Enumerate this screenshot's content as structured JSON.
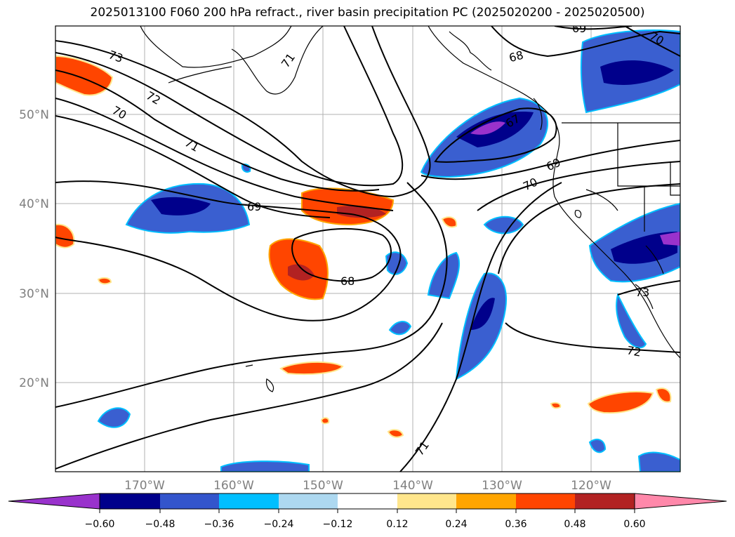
{
  "title": "2025013100 F060 200 hPa refract., river basin precipitation PC (2025020200 - 2025020500)",
  "map": {
    "lat_labels": [
      "50°N",
      "40°N",
      "30°N",
      "20°N"
    ],
    "lon_labels": [
      "170°W",
      "160°W",
      "150°W",
      "140°W",
      "130°W",
      "120°W"
    ],
    "contour_labels": [
      "73",
      "72",
      "71",
      "70",
      "69",
      "68",
      "68",
      "67",
      "69",
      "70",
      "71",
      "72",
      "73",
      "69",
      "70",
      "71"
    ]
  },
  "colorbar": {
    "ticks": [
      "−0.60",
      "−0.48",
      "−0.36",
      "−0.24",
      "−0.12",
      "0.12",
      "0.24",
      "0.36",
      "0.48",
      "0.60"
    ],
    "colors": [
      "#9932cc",
      "#00008b",
      "#3355cc",
      "#00bfff",
      "#add8f0",
      "#ffffff",
      "#ffe68c",
      "#ffa500",
      "#ff4500",
      "#b22222",
      "#ff88aa"
    ]
  }
}
